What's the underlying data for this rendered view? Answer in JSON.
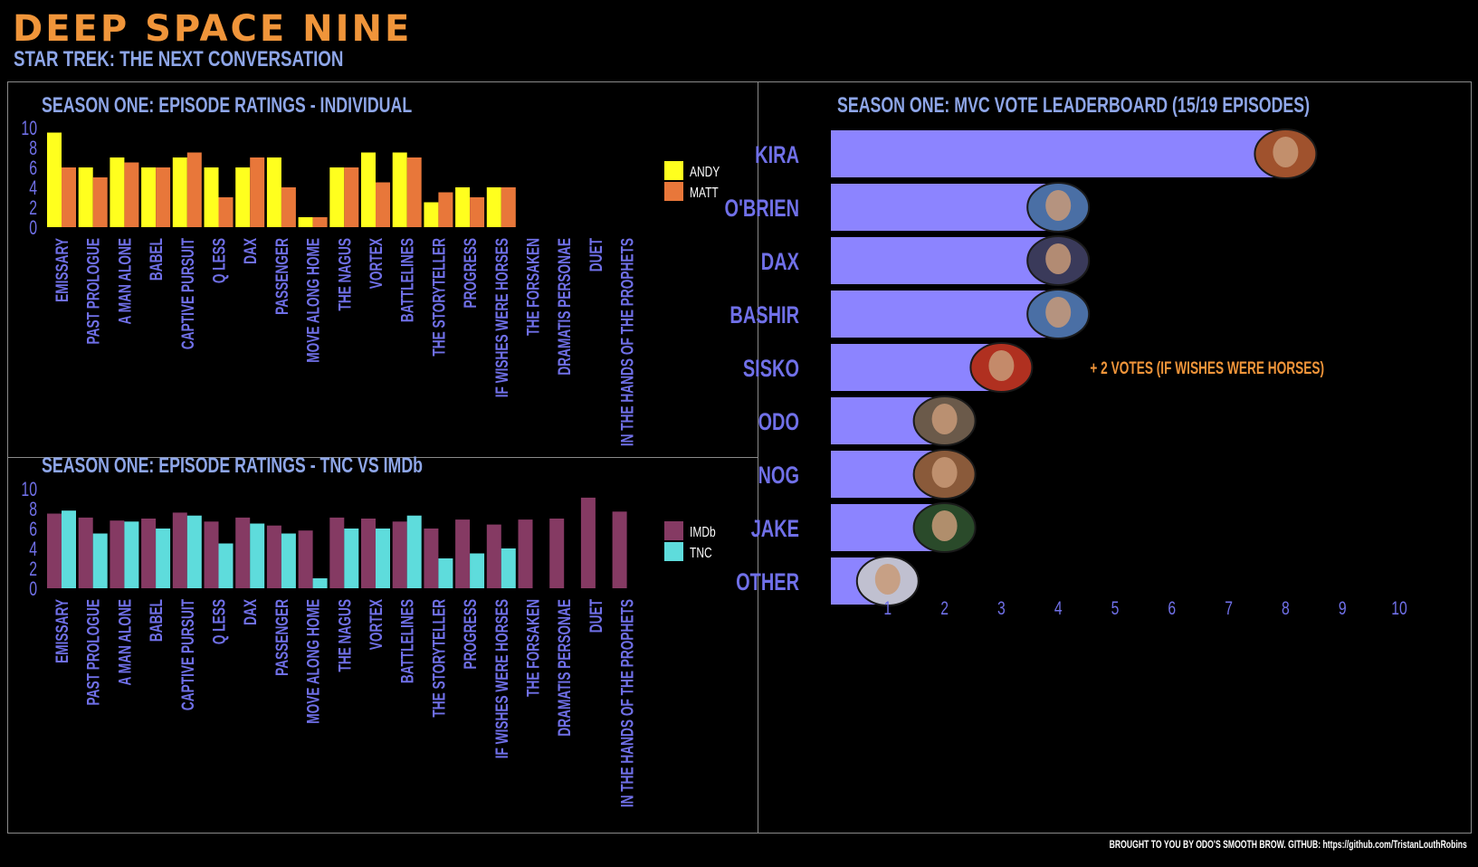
{
  "header": {
    "title": "DEEP SPACE NINE",
    "subtitle": "STAR TREK: THE NEXT CONVERSATION"
  },
  "footer": {
    "credit": "BROUGHT TO YOU BY ODO'S SMOOTH BROW. GITHUB: https://github.com/TristanLouthRobins"
  },
  "colors": {
    "background": "#000000",
    "title_orange": "#f0953a",
    "label_blue": "#8ea6e8",
    "axis_purple": "#7070e8",
    "andy": "#ffff1e",
    "matt": "#e8773a",
    "imdb": "#853a63",
    "tnc": "#5edcdc",
    "mvc_bar": "#8c84ff",
    "annotation": "#f0953a",
    "border": "#8a8a8a"
  },
  "chart_data": [
    {
      "type": "bar",
      "title": "SEASON ONE: EPISODE RATINGS - INDIVIDUAL",
      "categories": [
        "EMISSARY",
        "PAST PROLOGUE",
        "A MAN ALONE",
        "BABEL",
        "CAPTIVE PURSUIT",
        "Q LESS",
        "DAX",
        "PASSENGER",
        "MOVE ALONG HOME",
        "THE NAGUS",
        "VORTEX",
        "BATTLELINES",
        "THE STORYTELLER",
        "PROGRESS",
        "IF WISHES WERE HORSES",
        "THE FORSAKEN",
        "DRAMATIS PERSONAE",
        "DUET",
        "IN THE HANDS OF THE PROPHETS"
      ],
      "series": [
        {
          "name": "ANDY",
          "values": [
            9.5,
            6,
            7,
            6,
            7,
            6,
            6,
            7,
            1,
            6,
            7.5,
            7.5,
            2.5,
            4,
            4,
            null,
            null,
            null,
            null
          ]
        },
        {
          "name": "MATT",
          "values": [
            6,
            5,
            6.5,
            6,
            7.5,
            3,
            7,
            4,
            1,
            6,
            4.5,
            7,
            3.5,
            3,
            4,
            null,
            null,
            null,
            null
          ]
        }
      ],
      "yticks": [
        "0",
        "2",
        "4",
        "6",
        "8",
        "10"
      ],
      "ylim": [
        0,
        10
      ],
      "legend_position": "right"
    },
    {
      "type": "bar",
      "title": "SEASON ONE: EPISODE RATINGS - TNC VS IMDb",
      "categories": [
        "EMISSARY",
        "PAST PROLOGUE",
        "A MAN ALONE",
        "BABEL",
        "CAPTIVE PURSUIT",
        "Q LESS",
        "DAX",
        "PASSENGER",
        "MOVE ALONG HOME",
        "THE NAGUS",
        "VORTEX",
        "BATTLELINES",
        "THE STORYTELLER",
        "PROGRESS",
        "IF WISHES WERE HORSES",
        "THE FORSAKEN",
        "DRAMATIS PERSONAE",
        "DUET",
        "IN THE HANDS OF THE PROPHETS"
      ],
      "series": [
        {
          "name": "IMDb",
          "values": [
            7.5,
            7.1,
            6.8,
            7.0,
            7.6,
            6.7,
            7.1,
            6.3,
            5.8,
            7.1,
            7.0,
            6.7,
            6.0,
            6.9,
            6.4,
            6.9,
            7.0,
            9.1,
            7.7
          ]
        },
        {
          "name": "TNC",
          "values": [
            7.8,
            5.5,
            6.7,
            6.0,
            7.3,
            4.5,
            6.5,
            5.5,
            1.0,
            6.0,
            6.0,
            7.3,
            3.0,
            3.5,
            4.0,
            null,
            null,
            null,
            null
          ]
        }
      ],
      "yticks": [
        "0",
        "2",
        "4",
        "6",
        "8",
        "10"
      ],
      "ylim": [
        0,
        10
      ],
      "legend_position": "right"
    },
    {
      "type": "bar",
      "orientation": "horizontal",
      "title": "SEASON ONE: MVC VOTE LEADERBOARD (15/19 EPISODES)",
      "categories": [
        "KIRA",
        "O'BRIEN",
        "DAX",
        "BASHIR",
        "SISKO",
        "ODO",
        "NOG",
        "JAKE",
        "OTHER"
      ],
      "values": [
        8,
        4,
        4,
        4,
        3,
        2,
        2,
        2,
        1
      ],
      "xticks": [
        "1",
        "2",
        "3",
        "4",
        "5",
        "6",
        "7",
        "8",
        "9",
        "10"
      ],
      "xlim": [
        0,
        10
      ],
      "annotation": {
        "category": "SISKO",
        "text": "+ 2 VOTES (IF WISHES WERE HORSES)"
      }
    }
  ]
}
